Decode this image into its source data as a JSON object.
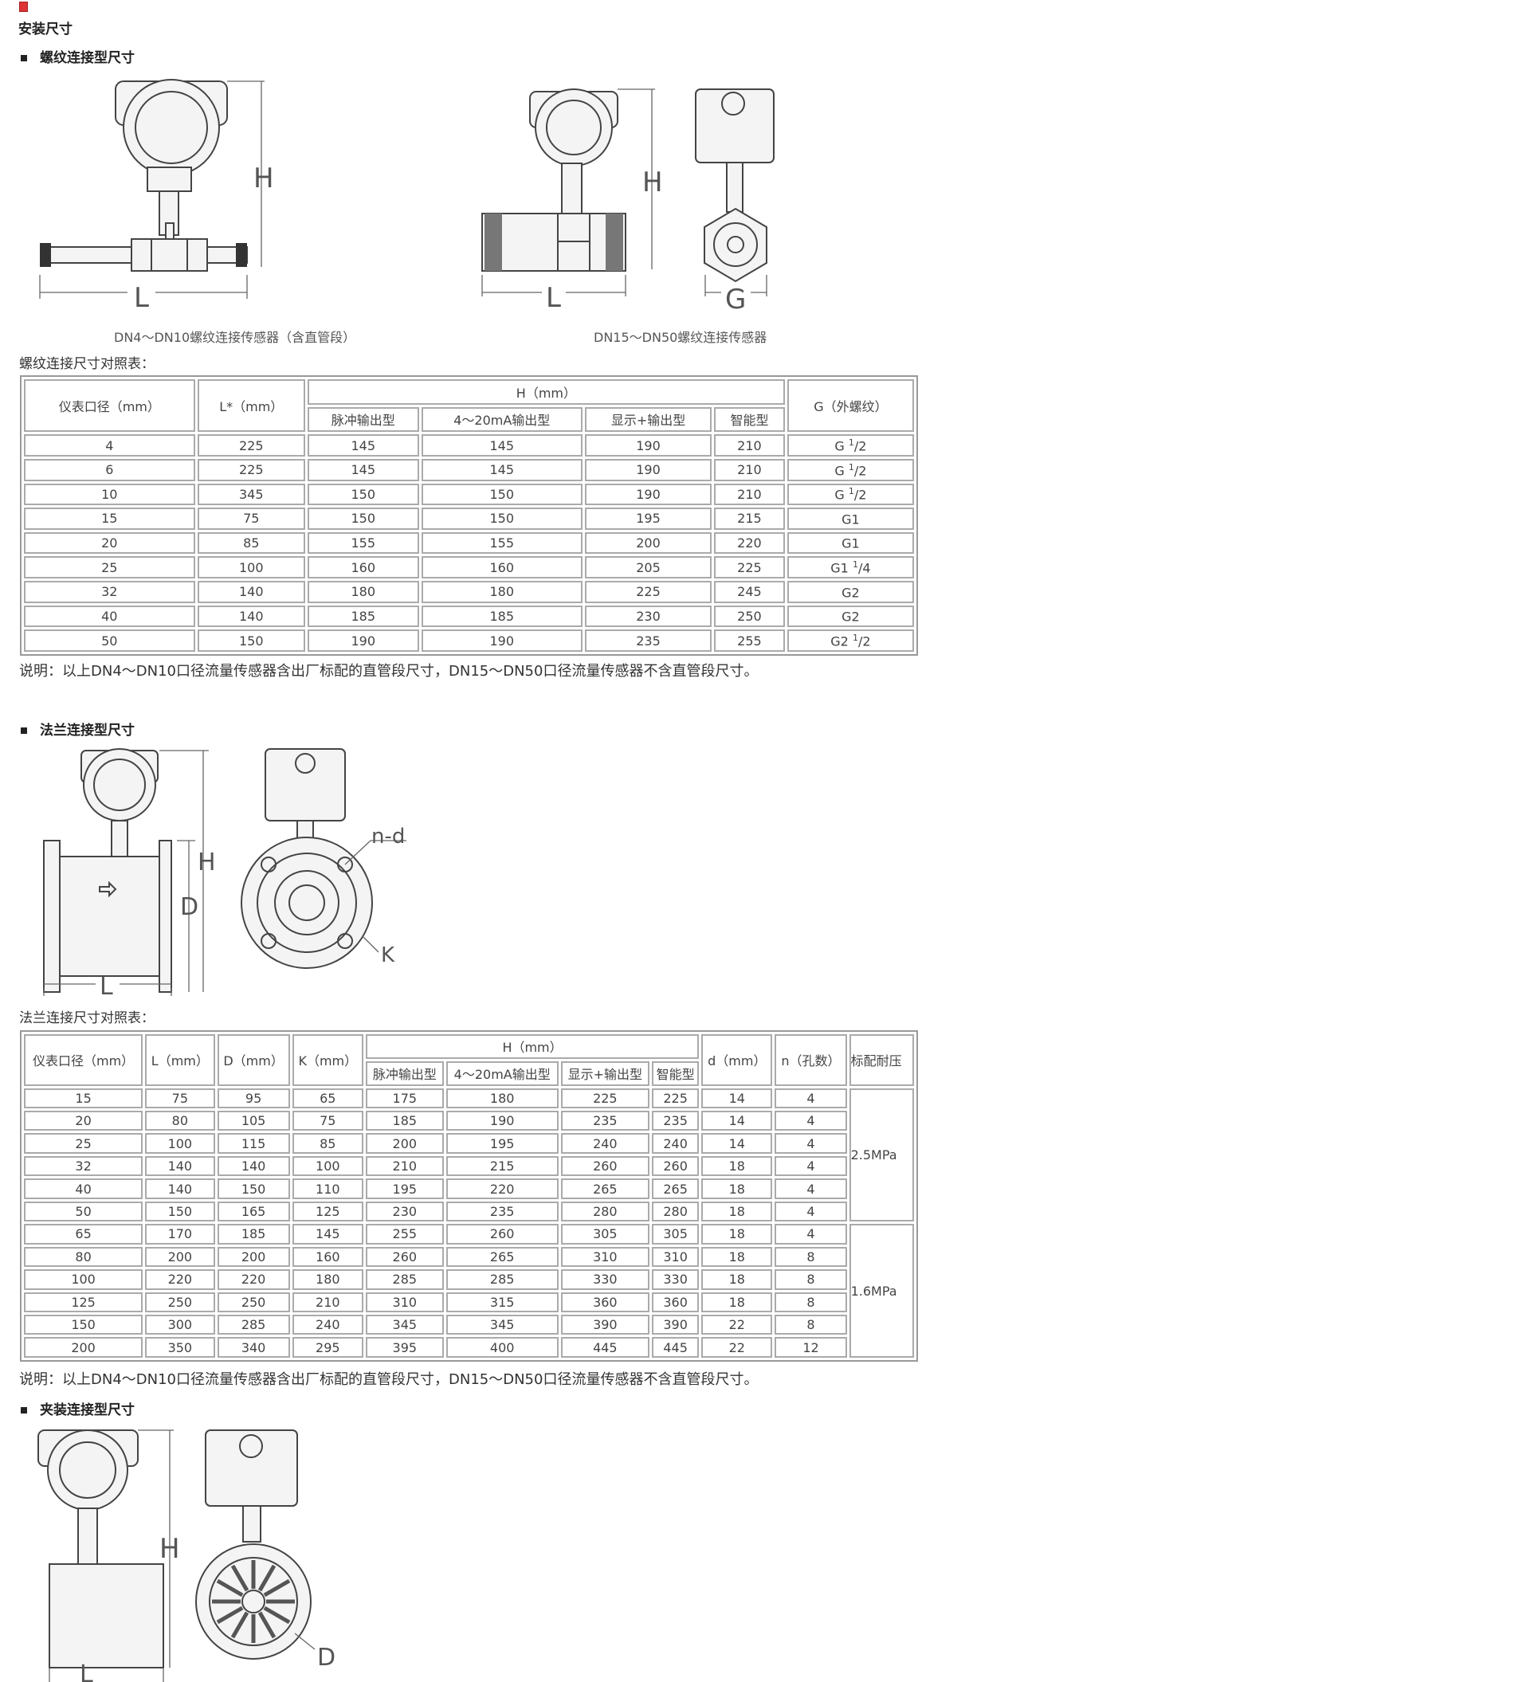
{
  "page": {
    "icon": "broken-image-icon",
    "section_title": "安装尺寸"
  },
  "threaded": {
    "heading": "螺纹连接型尺寸",
    "figure_left_caption": "DN4～DN10螺纹连接传感器（含直管段）",
    "figure_right_caption": "DN15～DN50螺纹连接传感器",
    "dim_labels": {
      "h": "H",
      "l": "L",
      "g": "G"
    },
    "table_title": "螺纹连接尺寸对照表：",
    "table": {
      "headers": {
        "diameter": "仪表口径（mm）",
        "length": "L*（mm）",
        "h_group": "H（mm）",
        "pulse": "脉冲输出型",
        "current": "4～20mA输出型",
        "display": "显示+输出型",
        "smart": "智能型",
        "g": "G（外螺纹）"
      },
      "rows": [
        {
          "dn": "4",
          "l": "225",
          "pulse": "145",
          "current": "145",
          "display": "190",
          "smart": "210",
          "g": {
            "base": "G ",
            "num": "1",
            "den": "/2"
          }
        },
        {
          "dn": "6",
          "l": "225",
          "pulse": "145",
          "current": "145",
          "display": "190",
          "smart": "210",
          "g": {
            "base": "G ",
            "num": "1",
            "den": "/2"
          }
        },
        {
          "dn": "10",
          "l": "345",
          "pulse": "150",
          "current": "150",
          "display": "190",
          "smart": "210",
          "g": {
            "base": "G ",
            "num": "1",
            "den": "/2"
          }
        },
        {
          "dn": "15",
          "l": "75",
          "pulse": "150",
          "current": "150",
          "display": "195",
          "smart": "215",
          "g": {
            "base": "G1",
            "num": "",
            "den": ""
          }
        },
        {
          "dn": "20",
          "l": "85",
          "pulse": "155",
          "current": "155",
          "display": "200",
          "smart": "220",
          "g": {
            "base": "G1",
            "num": "",
            "den": ""
          }
        },
        {
          "dn": "25",
          "l": "100",
          "pulse": "160",
          "current": "160",
          "display": "205",
          "smart": "225",
          "g": {
            "base": "G1 ",
            "num": "1",
            "den": "/4"
          }
        },
        {
          "dn": "32",
          "l": "140",
          "pulse": "180",
          "current": "180",
          "display": "225",
          "smart": "245",
          "g": {
            "base": "G2",
            "num": "",
            "den": ""
          }
        },
        {
          "dn": "40",
          "l": "140",
          "pulse": "185",
          "current": "185",
          "display": "230",
          "smart": "250",
          "g": {
            "base": "G2",
            "num": "",
            "den": ""
          }
        },
        {
          "dn": "50",
          "l": "150",
          "pulse": "190",
          "current": "190",
          "display": "235",
          "smart": "255",
          "g": {
            "base": "G2 ",
            "num": "1",
            "den": "/2"
          }
        }
      ]
    },
    "note": "说明：以上DN4～DN10口径流量传感器含出厂标配的直管段尺寸，DN15～DN50口径流量传感器不含直管段尺寸。"
  },
  "flange": {
    "heading": "法兰连接型尺寸",
    "dim_labels": {
      "h": "H",
      "d": "D",
      "l": "L",
      "nd": "n-d",
      "k": "K"
    },
    "table_title": "法兰连接尺寸对照表：",
    "table": {
      "headers": {
        "diameter": "仪表口径（mm）",
        "length": "L（mm）",
        "d_outer": "D（mm）",
        "k": "K（mm）",
        "h_group": "H（mm）",
        "pulse": "脉冲输出型",
        "current": "4～20mA输出型",
        "display": "显示+输出型",
        "smart": "智能型",
        "hole_d": "d（mm）",
        "holes": "n（孔数）",
        "pressure": "标配耐压"
      },
      "pressure_groups": [
        {
          "label": "2.5MPa",
          "rows": 6
        },
        {
          "label": "1.6MPa",
          "rows": 6
        }
      ],
      "rows": [
        [
          "15",
          "75",
          "95",
          "65",
          "175",
          "180",
          "225",
          "225",
          "14",
          "4"
        ],
        [
          "20",
          "80",
          "105",
          "75",
          "185",
          "190",
          "235",
          "235",
          "14",
          "4"
        ],
        [
          "25",
          "100",
          "115",
          "85",
          "200",
          "195",
          "240",
          "240",
          "14",
          "4"
        ],
        [
          "32",
          "140",
          "140",
          "100",
          "210",
          "215",
          "260",
          "260",
          "18",
          "4"
        ],
        [
          "40",
          "140",
          "150",
          "110",
          "195",
          "220",
          "265",
          "265",
          "18",
          "4"
        ],
        [
          "50",
          "150",
          "165",
          "125",
          "230",
          "235",
          "280",
          "280",
          "18",
          "4"
        ],
        [
          "65",
          "170",
          "185",
          "145",
          "255",
          "260",
          "305",
          "305",
          "18",
          "4"
        ],
        [
          "80",
          "200",
          "200",
          "160",
          "260",
          "265",
          "310",
          "310",
          "18",
          "8"
        ],
        [
          "100",
          "220",
          "220",
          "180",
          "285",
          "285",
          "330",
          "330",
          "18",
          "8"
        ],
        [
          "125",
          "250",
          "250",
          "210",
          "310",
          "315",
          "360",
          "360",
          "18",
          "8"
        ],
        [
          "150",
          "300",
          "285",
          "240",
          "345",
          "345",
          "390",
          "390",
          "22",
          "8"
        ],
        [
          "200",
          "350",
          "340",
          "295",
          "395",
          "400",
          "445",
          "445",
          "22",
          "12"
        ]
      ]
    },
    "note": "说明：以上DN4～DN10口径流量传感器含出厂标配的直管段尺寸，DN15～DN50口径流量传感器不含直管段尺寸。"
  },
  "clamp": {
    "heading": "夹装连接型尺寸",
    "dim_labels": {
      "h": "H",
      "l": "L",
      "d": "D"
    }
  }
}
